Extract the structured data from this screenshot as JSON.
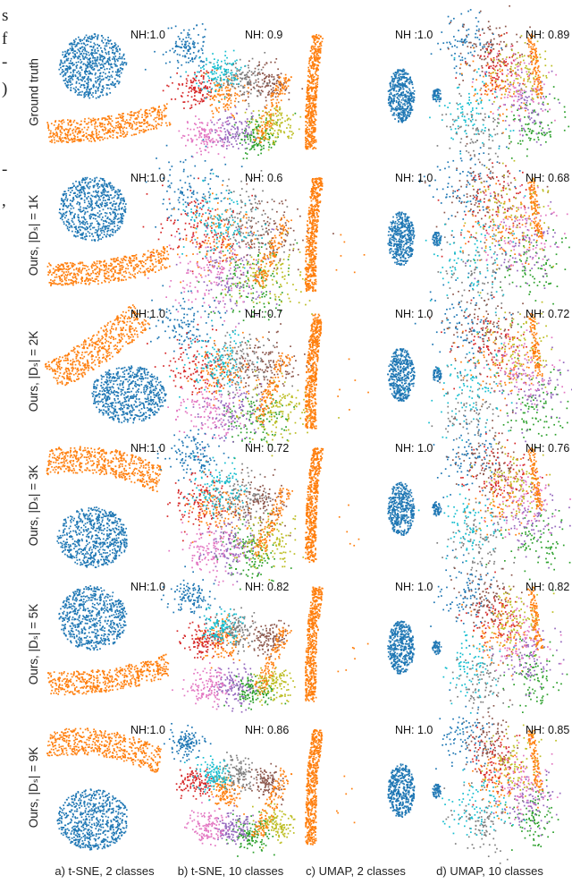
{
  "left_margin_text": [
    "s",
    "f",
    "-",
    ")",
    "-",
    ","
  ],
  "rows": [
    {
      "label": "Ground truth",
      "nh": [
        "NH:1.0",
        "NH: 0.9",
        "NH :1.0",
        "NH: 0.89"
      ]
    },
    {
      "label": "Ours, |Dₛ| = 1K",
      "nh": [
        "NH:1.0",
        "NH: 0.6",
        "NH: 1.0",
        "NH: 0.68"
      ]
    },
    {
      "label": "Ours, |Dₛ| = 2K",
      "nh": [
        "NH:1.0",
        "NH: 0.7",
        "NH: 1.0",
        "NH: 0.72"
      ]
    },
    {
      "label": "Ours, |Dₛ| = 3K",
      "nh": [
        "NH:1.0",
        "NH: 0.72",
        "NH: 1.0",
        "NH: 0.76"
      ]
    },
    {
      "label": "Ours, |Dₛ| = 5K",
      "nh": [
        "NH:1.0",
        "NH: 0.82",
        "NH: 1.0",
        "NH: 0.82"
      ]
    },
    {
      "label": "Ours, |Dₛ| = 9K",
      "nh": [
        "NH:1.0",
        "NH: 0.86",
        "NH: 1.0",
        "NH: 0.85"
      ]
    }
  ],
  "captions": [
    "a) t-SNE, 2 classes",
    "b) t-SNE, 10 classes",
    "c) UMAP, 2 classes",
    "d) UMAP, 10 classes"
  ],
  "chart_data": {
    "type": "scatter",
    "description_rows": "6 rows x 4 columns of 2D embedding scatter plots",
    "metric": "NH",
    "columns": [
      "a) t-SNE, 2 classes",
      "b) t-SNE, 10 classes",
      "c) UMAP, 2 classes",
      "d) UMAP, 10 classes"
    ],
    "row_labels": [
      "Ground truth",
      "Ours, |Dₛ| = 1K",
      "Ours, |Dₛ| = 2K",
      "Ours, |Dₛ| = 3K",
      "Ours, |Dₛ| = 5K",
      "Ours, |Dₛ| = 9K"
    ],
    "nh_values": [
      [
        1.0,
        0.9,
        1.0,
        0.89
      ],
      [
        1.0,
        0.6,
        1.0,
        0.68
      ],
      [
        1.0,
        0.7,
        1.0,
        0.72
      ],
      [
        1.0,
        0.72,
        1.0,
        0.76
      ],
      [
        1.0,
        0.82,
        1.0,
        0.82
      ],
      [
        1.0,
        0.86,
        1.0,
        0.85
      ]
    ],
    "palette": [
      "#1f77b4",
      "#ff7f0e",
      "#2ca02c",
      "#d62728",
      "#9467bd",
      "#8c564b",
      "#e377c2",
      "#7f7f7f",
      "#bcbd22",
      "#17becf"
    ],
    "axes": "hidden",
    "grid": false,
    "legend": "none"
  }
}
